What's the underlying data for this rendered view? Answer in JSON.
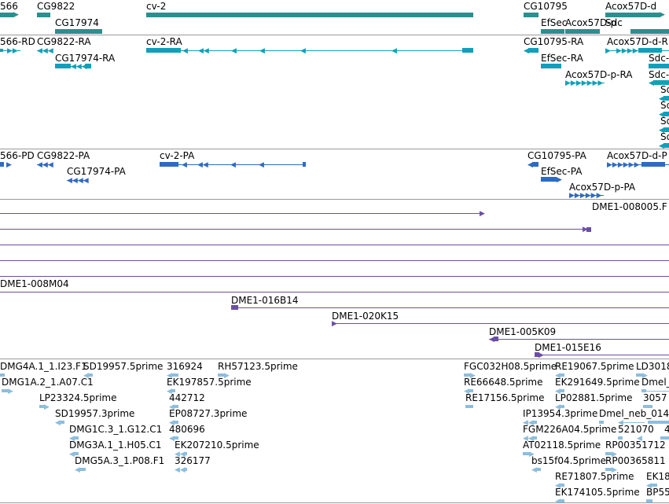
{
  "colors": {
    "gene": "#2a8f8f",
    "transcript": "#11a0b8",
    "protein": "#2f6bc0",
    "bac": "#6a4fa8",
    "est": "#8cbede",
    "separator": "#9a9a9a"
  },
  "genes": {
    "labels": [
      "566",
      "CG9822",
      "CG17974",
      "cv-2",
      "CG10795",
      "EfSec",
      "Acox57D-p",
      "Acox57D-d",
      "Sdc"
    ]
  },
  "transcripts": {
    "labels": [
      "566-RD",
      "CG9822-RA",
      "CG17974-RA",
      "cv-2-RA",
      "CG10795-RA",
      "Acox57D-d-R",
      "EfSec-RA",
      "Sdc-",
      "Acox57D-p-RA",
      "Sdc-",
      "Sd",
      "Sd",
      "Sd",
      "Sd"
    ]
  },
  "proteins": {
    "labels": [
      "566-PD",
      "CG9822-PA",
      "CG17974-PA",
      "cv-2-PA",
      "CG10795-PA",
      "Acox57D-d-P",
      "EfSec-PA",
      "Acox57D-p-PA"
    ]
  },
  "bac_clones": {
    "labels": [
      "DME1-008005.F",
      "DME1-008M04",
      "DME1-016B14",
      "DME1-020K15",
      "DME1-005K09",
      "DME1-015E16"
    ]
  },
  "ests": {
    "labels": [
      "DMG4A.1_1.I23.F1",
      "SD19957.5prime",
      "316924",
      "RH57123.5prime",
      "FGC032H08.5prime",
      "RE19067.5prime",
      "LD3018",
      "DMG1A.2_1.A07.C1",
      "EK197857.5prime",
      "RE66648.5prime",
      "EK291649.5prime",
      "Dmel_",
      "LP23324.5prime",
      "442712",
      "RE17156.5prime",
      "LP02881.5prime",
      "3057",
      "SD19957.3prime",
      "EP08727.3prime",
      "IP13954.3prime",
      "Dmel_neb_014",
      "DMG1C.3_1.G12.C1",
      "480696",
      "FGM226A04.5prime",
      "521070",
      "4",
      "DMG3A.1_1.H05.C1",
      "EK207210.5prime",
      "AT02118.5prime",
      "RP00351712",
      "DMG5A.3_1.P08.F1",
      "326177",
      "bs15f04.5prime",
      "RP00365811",
      "RE71807.5prime",
      "EK18",
      "EK174105.5prime",
      "BP55"
    ]
  }
}
